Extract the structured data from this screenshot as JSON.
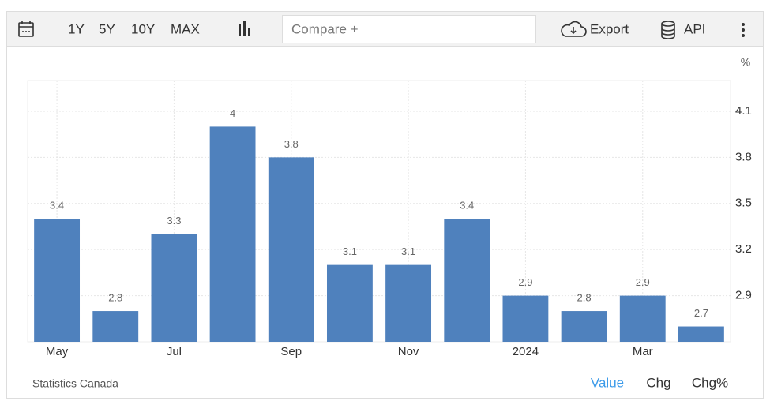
{
  "toolbar": {
    "ranges": [
      "1Y",
      "5Y",
      "10Y",
      "MAX"
    ],
    "compare": "Compare +",
    "export": "Export",
    "api": "API"
  },
  "chart_data": {
    "type": "bar",
    "unit": "%",
    "categories": [
      "May",
      null,
      "Jul",
      null,
      "Sep",
      null,
      "Nov",
      null,
      "2024",
      null,
      "Mar",
      null
    ],
    "values": [
      3.4,
      2.8,
      3.3,
      4,
      3.8,
      3.1,
      3.1,
      3.4,
      2.9,
      2.8,
      2.9,
      2.7
    ],
    "color": "#4f81bd",
    "ylim": [
      2.6,
      4.3
    ],
    "yticks": [
      2.9,
      3.2,
      3.5,
      3.8,
      4.1
    ],
    "grid": true
  },
  "footer": {
    "source": "Statistics Canada",
    "tabs": [
      "Value",
      "Chg",
      "Chg%"
    ]
  }
}
